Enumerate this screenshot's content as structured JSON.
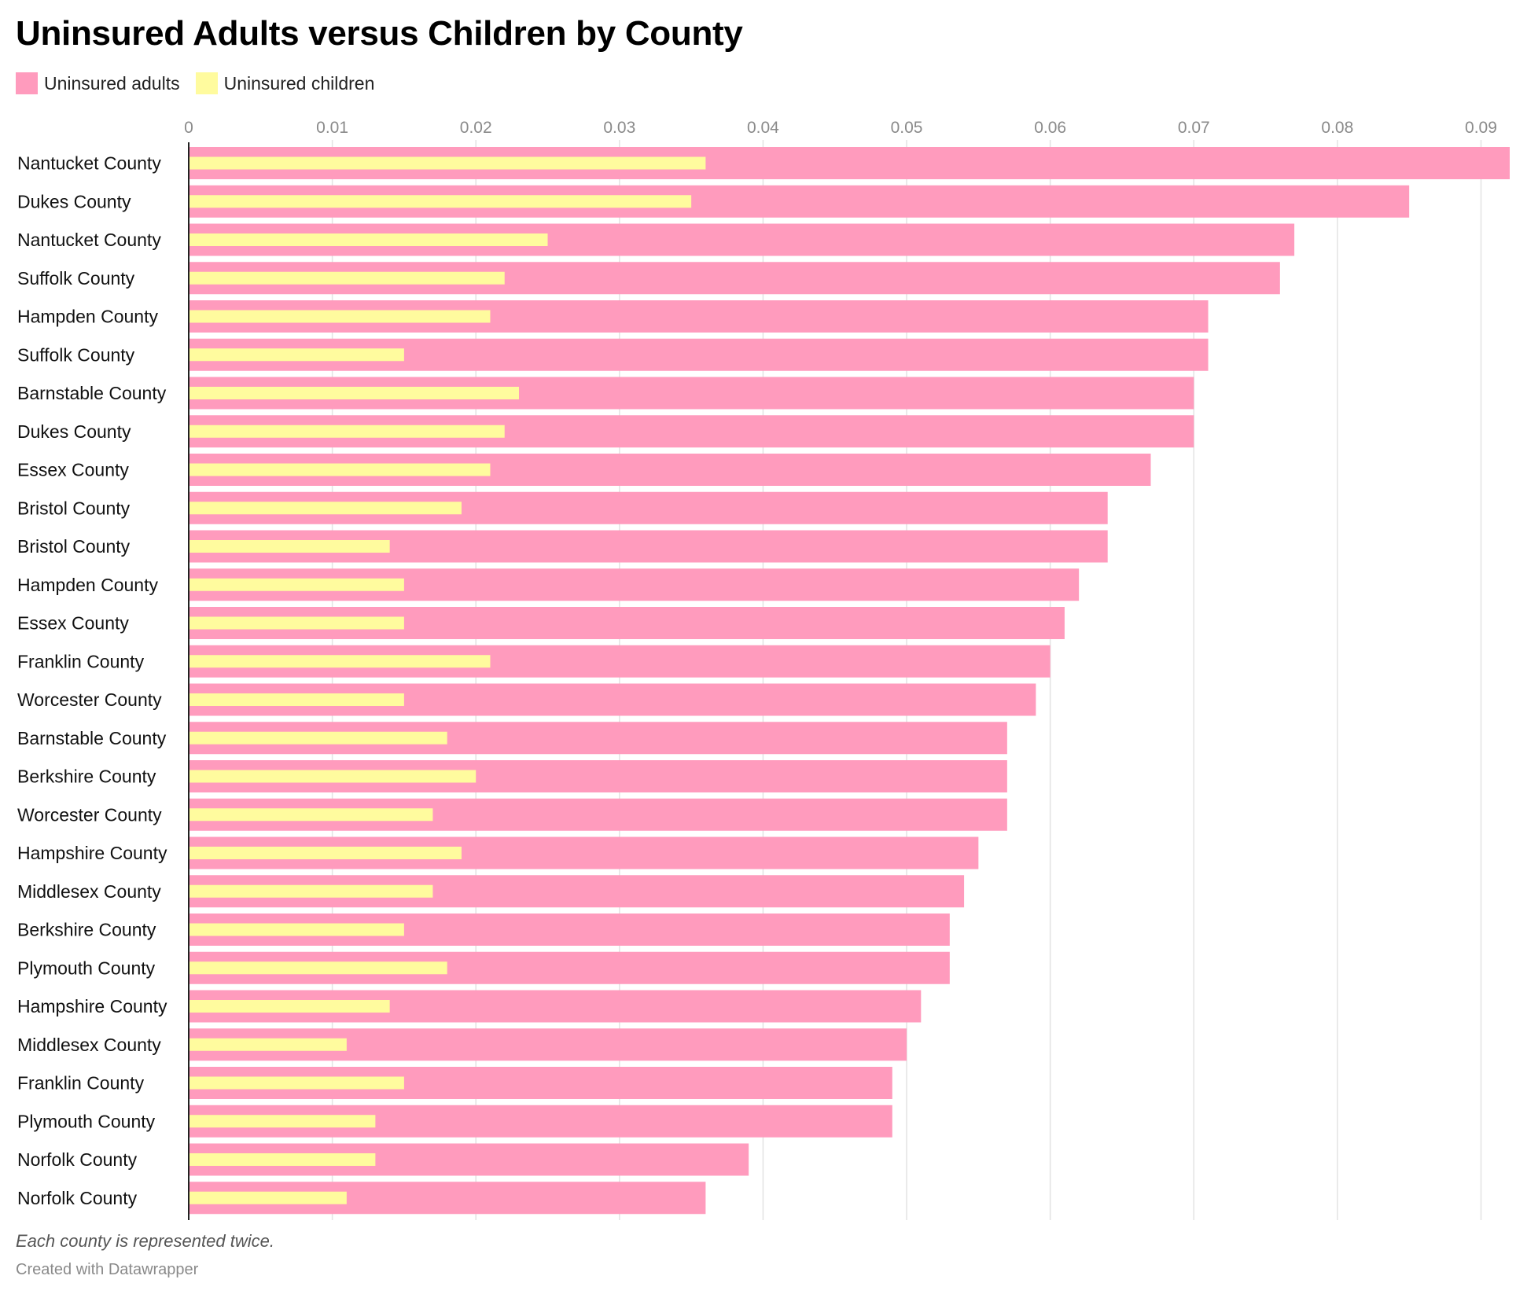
{
  "chart_data": {
    "type": "bar",
    "orientation": "horizontal",
    "title": "Uninsured Adults versus Children by County",
    "categories": [
      "Nantucket County",
      "Dukes County",
      "Nantucket County",
      "Suffolk County",
      "Hampden County",
      "Suffolk County",
      "Barnstable County",
      "Dukes County",
      "Essex County",
      "Bristol County",
      "Bristol County",
      "Hampden County",
      "Essex County",
      "Franklin County",
      "Worcester County",
      "Barnstable County",
      "Berkshire County",
      "Worcester County",
      "Hampshire County",
      "Middlesex County",
      "Berkshire County",
      "Plymouth County",
      "Hampshire County",
      "Middlesex County",
      "Franklin County",
      "Plymouth County",
      "Norfolk County",
      "Norfolk County"
    ],
    "series": [
      {
        "name": "Uninsured adults",
        "color": "#ff9bbd",
        "values": [
          0.092,
          0.085,
          0.077,
          0.076,
          0.071,
          0.071,
          0.07,
          0.07,
          0.067,
          0.064,
          0.064,
          0.062,
          0.061,
          0.06,
          0.059,
          0.057,
          0.057,
          0.057,
          0.055,
          0.054,
          0.053,
          0.053,
          0.051,
          0.05,
          0.049,
          0.049,
          0.039,
          0.036
        ]
      },
      {
        "name": "Uninsured children",
        "color": "#fffb9e",
        "values": [
          0.036,
          0.035,
          0.025,
          0.022,
          0.021,
          0.015,
          0.023,
          0.022,
          0.021,
          0.019,
          0.014,
          0.015,
          0.015,
          0.021,
          0.015,
          0.018,
          0.02,
          0.017,
          0.019,
          0.017,
          0.015,
          0.018,
          0.014,
          0.011,
          0.015,
          0.013,
          0.013,
          0.011
        ]
      }
    ],
    "xaxis": {
      "position": "top",
      "range": [
        0,
        0.092
      ],
      "ticks": [
        0,
        0.01,
        0.02,
        0.03,
        0.04,
        0.05,
        0.06,
        0.07,
        0.08,
        0.09
      ],
      "tick_labels": [
        "0",
        "0.01",
        "0.02",
        "0.03",
        "0.04",
        "0.05",
        "0.06",
        "0.07",
        "0.08",
        "0.09"
      ]
    },
    "grid": true,
    "legend_position": "top-left",
    "note": "Each county is represented twice.",
    "credit": "Created with Datawrapper"
  }
}
